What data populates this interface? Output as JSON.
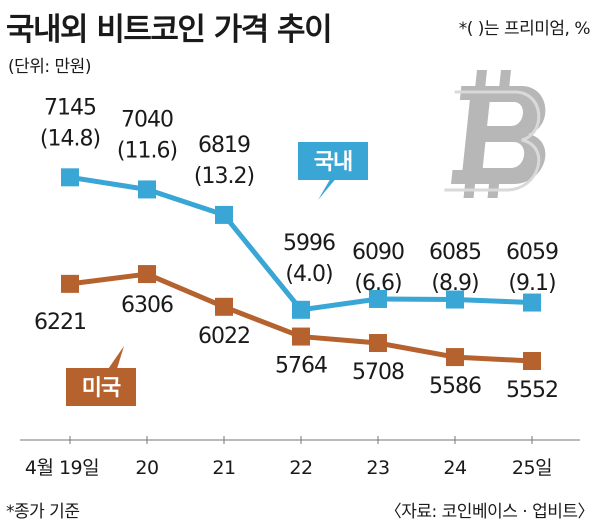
{
  "title": "국내외 비트코인 가격 추이",
  "unit_note": "(단위: 만원)",
  "premium_note": "*(  )는 프리미엄, %",
  "footnote": "*종가 기준",
  "source": "〈자료: 코인베이스 · 업비트〉",
  "chart_data": {
    "type": "line",
    "categories": [
      "4월 19일",
      "20",
      "21",
      "22",
      "23",
      "24",
      "25일"
    ],
    "series": [
      {
        "name": "국내",
        "color": "#3aa6d6",
        "values": [
          7145,
          7040,
          6819,
          5996,
          6090,
          6085,
          6059
        ],
        "labels": [
          "7145\n(14.8)",
          "7040\n(11.6)",
          "6819\n(13.2)",
          "5996\n(4.0)",
          "6090\n(6.6)",
          "6085\n(8.9)",
          "6059\n(9.1)"
        ]
      },
      {
        "name": "미국",
        "color": "#b5622e",
        "values": [
          6221,
          6306,
          6022,
          5764,
          5708,
          5586,
          5552
        ],
        "labels": [
          "6221",
          "6306",
          "6022",
          "5764",
          "5708",
          "5586",
          "5552"
        ]
      }
    ],
    "grid": false,
    "logo_icon": "bitcoin-icon"
  }
}
